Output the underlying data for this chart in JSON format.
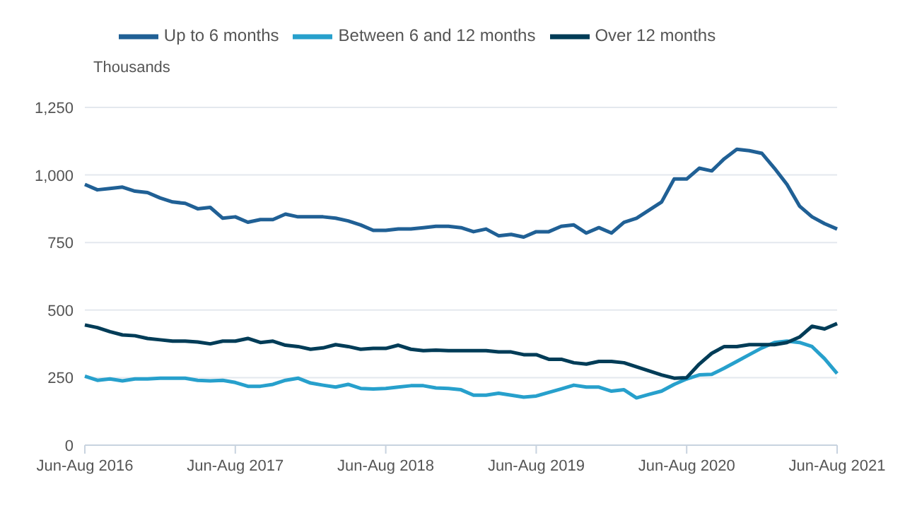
{
  "chart_data": {
    "type": "line",
    "ylabel": "Thousands",
    "categories": [
      "Jun-Aug 2016",
      null,
      null,
      null,
      null,
      null,
      null,
      null,
      null,
      null,
      null,
      null,
      "Jun-Aug 2017",
      null,
      null,
      null,
      null,
      null,
      null,
      null,
      null,
      null,
      null,
      null,
      "Jun-Aug 2018",
      null,
      null,
      null,
      null,
      null,
      null,
      null,
      null,
      null,
      null,
      null,
      "Jun-Aug 2019",
      null,
      null,
      null,
      null,
      null,
      null,
      null,
      null,
      null,
      null,
      null,
      "Jun-Aug 2020",
      null,
      null,
      null,
      null,
      null,
      null,
      null,
      null,
      null,
      null,
      null,
      "Jun-Aug 2021"
    ],
    "ylim": [
      0,
      1250
    ],
    "yticks": [
      0,
      {
        "value": 250,
        "label": "250"
      },
      {
        "value": 500,
        "label": "500"
      },
      {
        "value": 750,
        "label": "750"
      },
      {
        "value": 1000,
        "label": "1,000"
      },
      {
        "value": 1250,
        "label": "1,250"
      }
    ],
    "grid": "y",
    "legend": "top",
    "marker": "none",
    "line_style": "solid",
    "series": [
      {
        "name": "Up to 6 months",
        "color": "#206095",
        "values": [
          965,
          945,
          950,
          955,
          940,
          935,
          915,
          900,
          895,
          875,
          880,
          840,
          845,
          825,
          835,
          835,
          855,
          845,
          845,
          845,
          840,
          830,
          815,
          795,
          795,
          800,
          800,
          805,
          810,
          810,
          805,
          790,
          800,
          775,
          780,
          770,
          790,
          790,
          810,
          815,
          785,
          805,
          785,
          825,
          840,
          870,
          900,
          985,
          985,
          1025,
          1015,
          1060,
          1095,
          1090,
          1080,
          1025,
          965,
          885,
          845,
          820,
          800
        ]
      },
      {
        "name": "Between 6 and 12 months",
        "color": "#27a0cc",
        "values": [
          255,
          240,
          245,
          238,
          245,
          245,
          248,
          248,
          248,
          240,
          238,
          240,
          232,
          218,
          218,
          225,
          240,
          248,
          230,
          222,
          215,
          225,
          210,
          208,
          210,
          215,
          220,
          220,
          212,
          210,
          205,
          185,
          185,
          192,
          185,
          178,
          182,
          195,
          208,
          222,
          215,
          215,
          200,
          205,
          175,
          188,
          200,
          225,
          245,
          260,
          262,
          285,
          310,
          335,
          360,
          380,
          385,
          380,
          365,
          320,
          265
        ]
      },
      {
        "name": "Over 12 months",
        "color": "#003c57",
        "values": [
          445,
          435,
          420,
          408,
          405,
          395,
          390,
          385,
          385,
          382,
          375,
          385,
          385,
          395,
          380,
          385,
          370,
          365,
          355,
          360,
          372,
          365,
          355,
          358,
          358,
          370,
          355,
          350,
          352,
          350,
          350,
          350,
          350,
          345,
          345,
          335,
          335,
          318,
          318,
          305,
          300,
          310,
          310,
          305,
          290,
          275,
          260,
          248,
          250,
          300,
          340,
          365,
          365,
          372,
          372,
          372,
          380,
          400,
          440,
          430,
          450
        ]
      }
    ]
  }
}
